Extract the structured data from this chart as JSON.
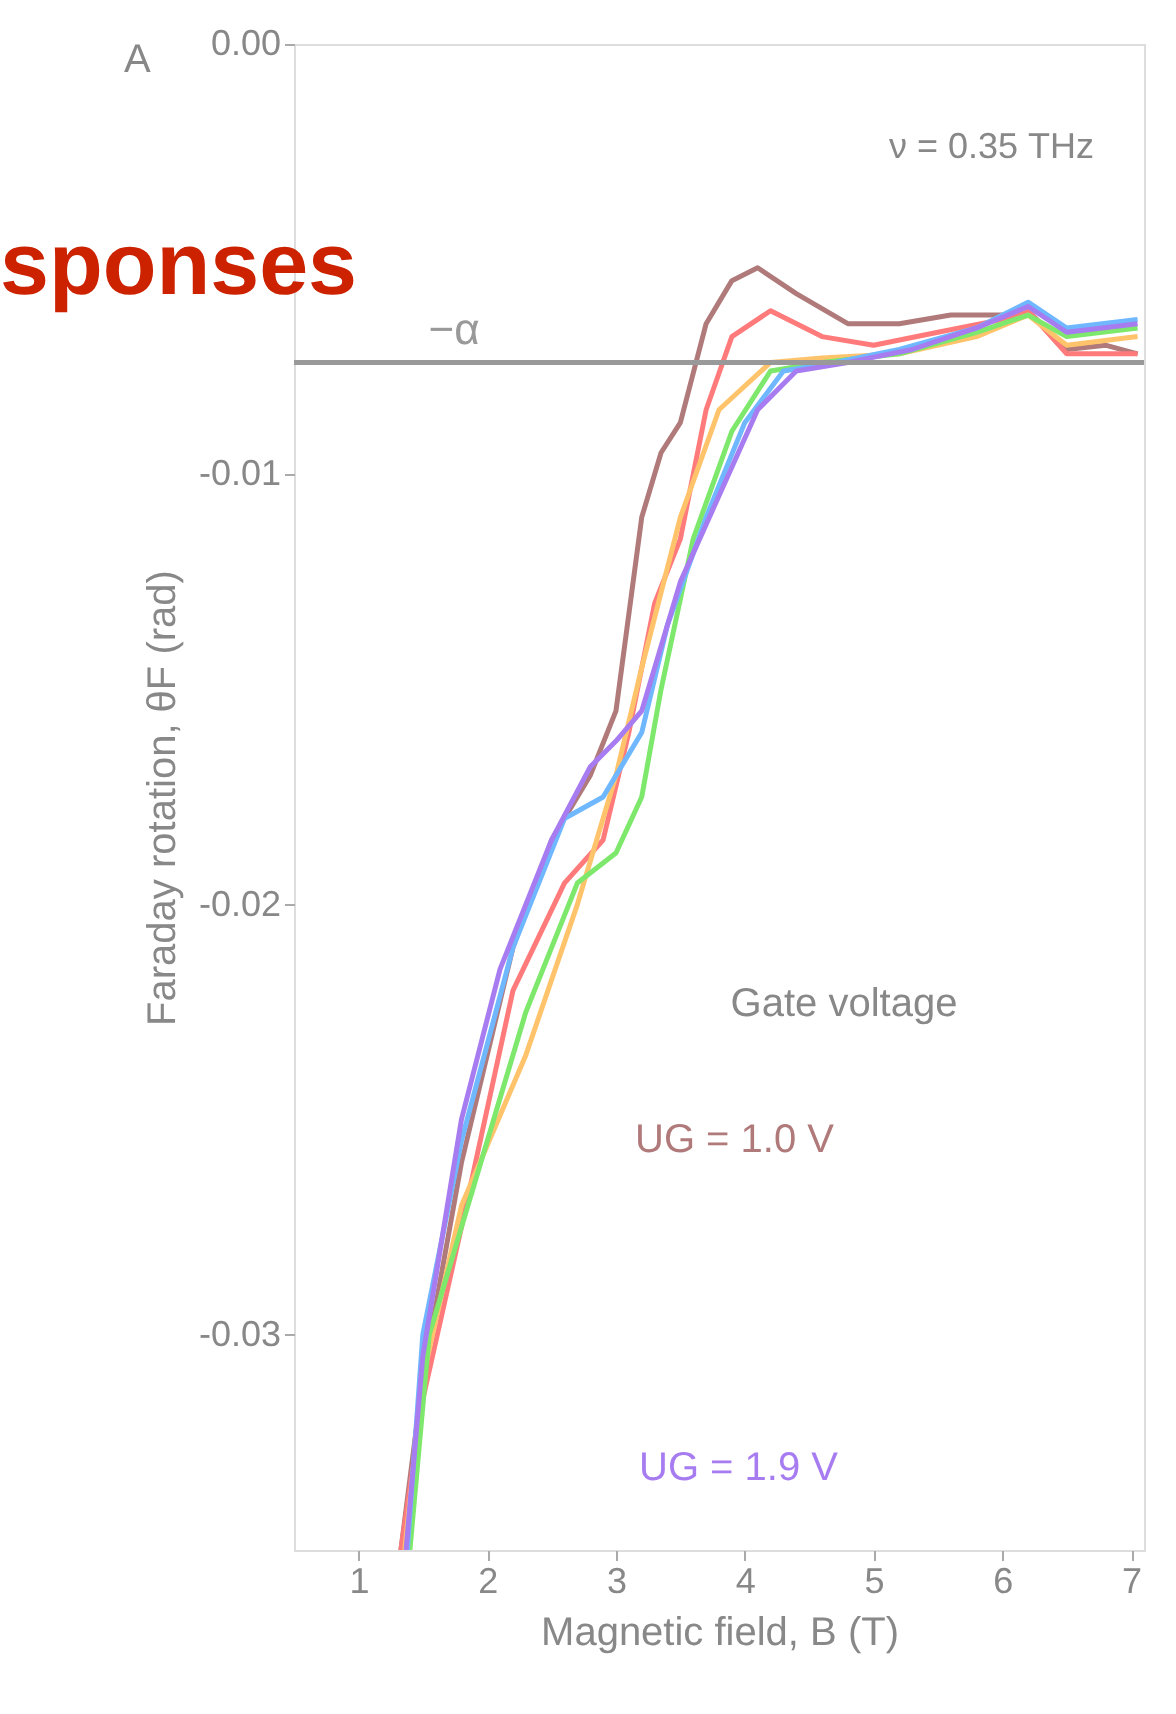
{
  "chart_data": {
    "type": "line",
    "xlabel": "Magnetic field, B (T)",
    "ylabel": "Faraday rotation, θF (rad)",
    "xlim": [
      0.5,
      7.1
    ],
    "xticks": [
      1,
      2,
      3,
      4,
      5,
      6,
      7
    ],
    "ylim": [
      -0.035,
      0
    ],
    "yticks": [
      {
        "value": 0,
        "label": "0.00"
      },
      {
        "value": -0.01,
        "label": "-0.01"
      },
      {
        "value": -0.02,
        "label": "-0.02"
      },
      {
        "value": -0.03,
        "label": "-0.03"
      }
    ],
    "grid": false,
    "legend": false,
    "marker": "none",
    "line_style": "solid",
    "ref_lines": [
      {
        "axis": "y",
        "value": -0.0074,
        "label": "−α",
        "color": "#999999"
      }
    ],
    "annotations": [
      "A",
      "ν = 0.35 THz",
      "Gate voltage",
      "UG = 1.0 V",
      "UG = 1.9 V",
      "sponses"
    ],
    "series": [
      {
        "color": "#b07a7a",
        "x": [
          1.33,
          1.5,
          1.8,
          2.2,
          2.5,
          2.8,
          3.0,
          3.2,
          3.35,
          3.5,
          3.7,
          3.9,
          4.1,
          4.4,
          4.8,
          5.2,
          5.6,
          6.0,
          6.2,
          6.5,
          6.8,
          7.05
        ],
        "values": [
          -0.035,
          -0.031,
          -0.026,
          -0.021,
          -0.0185,
          -0.017,
          -0.0155,
          -0.011,
          -0.0095,
          -0.0088,
          -0.0065,
          -0.0055,
          -0.0052,
          -0.0058,
          -0.0065,
          -0.0065,
          -0.0063,
          -0.0063,
          -0.0062,
          -0.0071,
          -0.007,
          -0.0072
        ]
      },
      {
        "color": "#ff7b7b",
        "x": [
          1.33,
          1.5,
          1.8,
          2.2,
          2.6,
          2.9,
          3.1,
          3.3,
          3.5,
          3.7,
          3.9,
          4.2,
          4.6,
          5.0,
          5.5,
          6.0,
          6.2,
          6.5,
          7.05
        ],
        "values": [
          -0.035,
          -0.0315,
          -0.0275,
          -0.022,
          -0.0195,
          -0.0185,
          -0.016,
          -0.013,
          -0.0115,
          -0.0085,
          -0.0068,
          -0.0062,
          -0.0068,
          -0.007,
          -0.0067,
          -0.0064,
          -0.0062,
          -0.0072,
          -0.0072
        ]
      },
      {
        "color": "#ffc46b",
        "x": [
          1.36,
          1.5,
          1.8,
          2.3,
          2.7,
          3.0,
          3.2,
          3.5,
          3.8,
          4.2,
          4.6,
          5.2,
          5.8,
          6.2,
          6.5,
          7.05
        ],
        "values": [
          -0.035,
          -0.031,
          -0.027,
          -0.0235,
          -0.02,
          -0.017,
          -0.0145,
          -0.011,
          -0.0085,
          -0.0074,
          -0.0073,
          -0.0072,
          -0.0068,
          -0.0063,
          -0.007,
          -0.0068
        ]
      },
      {
        "color": "#7de86b",
        "x": [
          1.4,
          1.55,
          1.9,
          2.3,
          2.7,
          3.0,
          3.2,
          3.35,
          3.6,
          3.9,
          4.2,
          4.6,
          5.2,
          5.8,
          6.2,
          6.5,
          7.05
        ],
        "values": [
          -0.035,
          -0.03,
          -0.0265,
          -0.0225,
          -0.0195,
          -0.0188,
          -0.0175,
          -0.015,
          -0.0115,
          -0.009,
          -0.0076,
          -0.0074,
          -0.0072,
          -0.0067,
          -0.0063,
          -0.0068,
          -0.0066
        ]
      },
      {
        "color": "#6fb7ff",
        "x": [
          1.38,
          1.5,
          1.8,
          2.2,
          2.6,
          2.9,
          3.2,
          3.4,
          3.7,
          4.0,
          4.3,
          4.7,
          5.2,
          5.8,
          6.2,
          6.5,
          7.05
        ],
        "values": [
          -0.035,
          -0.03,
          -0.0255,
          -0.021,
          -0.018,
          -0.0175,
          -0.016,
          -0.0135,
          -0.011,
          -0.0088,
          -0.0076,
          -0.0074,
          -0.0071,
          -0.0066,
          -0.006,
          -0.0066,
          -0.0064
        ]
      },
      {
        "color": "#a77cf0",
        "x": [
          1.37,
          1.5,
          1.8,
          2.1,
          2.5,
          2.8,
          3.0,
          3.2,
          3.5,
          3.8,
          4.1,
          4.4,
          4.8,
          5.3,
          5.8,
          6.2,
          6.5,
          7.05
        ],
        "values": [
          -0.035,
          -0.0305,
          -0.025,
          -0.0215,
          -0.0185,
          -0.0168,
          -0.0162,
          -0.0155,
          -0.0125,
          -0.0105,
          -0.0085,
          -0.0076,
          -0.0074,
          -0.0071,
          -0.0066,
          -0.0061,
          -0.0067,
          -0.0065
        ]
      }
    ]
  }
}
